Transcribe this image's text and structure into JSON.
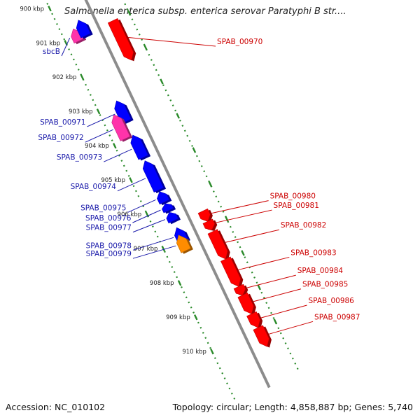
{
  "title": "Salmonella enterica subsp. enterica serovar Paratyphi B str....",
  "accession_label": "Accession: NC_010102",
  "summary_label": "Topology: circular; Length: 4,858,887 bp; Genes: 5,740",
  "colors": {
    "backbone": "#8c8c8c",
    "tick": "#2a8a2a",
    "forward_gene": "#ff0000",
    "reverse_gene": "#0000ff",
    "pseudo_gene": "#ff33aa",
    "rna_gene": "#ff8c00",
    "forward_label": "#cc0000",
    "reverse_label": "#1a1aaa"
  },
  "scale": {
    "unit": "kbp",
    "ticks": [
      {
        "kbp": 900,
        "label": "900 kbp"
      },
      {
        "kbp": 901,
        "label": "901 kbp"
      },
      {
        "kbp": 902,
        "label": "902 kbp"
      },
      {
        "kbp": 903,
        "label": "903 kbp"
      },
      {
        "kbp": 904,
        "label": "904 kbp"
      },
      {
        "kbp": 905,
        "label": "905 kbp"
      },
      {
        "kbp": 906,
        "label": "906 kbp"
      },
      {
        "kbp": 907,
        "label": "907 kbp"
      },
      {
        "kbp": 908,
        "label": "908 kbp"
      },
      {
        "kbp": 909,
        "label": "909 kbp"
      },
      {
        "kbp": 910,
        "label": "910 kbp"
      }
    ]
  },
  "genes": [
    {
      "label": "sbcB",
      "strand": "reverse",
      "type": "pseudo",
      "start": 900.75,
      "end": 901.1
    },
    {
      "label": "",
      "strand": "reverse",
      "type": "cds",
      "start": 900.6,
      "end": 901.05
    },
    {
      "label": "SPAB_00970",
      "strand": "forward",
      "type": "cds",
      "start": 901.0,
      "end": 902.15
    },
    {
      "label": "SPAB_00971",
      "strand": "reverse",
      "type": "cds",
      "start": 902.95,
      "end": 903.55
    },
    {
      "label": "SPAB_00972",
      "strand": "reverse",
      "type": "pseudo",
      "start": 903.25,
      "end": 903.95
    },
    {
      "label": "SPAB_00973",
      "strand": "reverse",
      "type": "cds",
      "start": 903.95,
      "end": 904.6
    },
    {
      "label": "SPAB_00974",
      "strand": "reverse",
      "type": "cds",
      "start": 904.7,
      "end": 905.55
    },
    {
      "label": "SPAB_00975",
      "strand": "reverse",
      "type": "cds",
      "start": 905.6,
      "end": 905.9
    },
    {
      "label": "SPAB_00976",
      "strand": "reverse",
      "type": "cds",
      "start": 905.95,
      "end": 906.15
    },
    {
      "label": "SPAB_00977",
      "strand": "reverse",
      "type": "cds",
      "start": 906.2,
      "end": 906.45
    },
    {
      "label": "SPAB_00978",
      "strand": "reverse",
      "type": "cds",
      "start": 906.65,
      "end": 907.05
    },
    {
      "label": "SPAB_00979",
      "strand": "reverse",
      "type": "rna",
      "start": 906.85,
      "end": 907.3
    },
    {
      "label": "SPAB_00980",
      "strand": "forward",
      "type": "cds",
      "start": 906.55,
      "end": 906.85
    },
    {
      "label": "SPAB_00981",
      "strand": "forward",
      "type": "cds",
      "start": 906.85,
      "end": 907.1
    },
    {
      "label": "SPAB_00982",
      "strand": "forward",
      "type": "cds",
      "start": 907.15,
      "end": 907.95
    },
    {
      "label": "SPAB_00983",
      "strand": "forward",
      "type": "cds",
      "start": 907.95,
      "end": 908.75
    },
    {
      "label": "SPAB_00984",
      "strand": "forward",
      "type": "cds",
      "start": 908.75,
      "end": 909.0
    },
    {
      "label": "SPAB_00985",
      "strand": "forward",
      "type": "cds",
      "start": 909.0,
      "end": 909.55
    },
    {
      "label": "SPAB_00986",
      "strand": "forward",
      "type": "cds",
      "start": 909.55,
      "end": 909.95
    },
    {
      "label": "SPAB_00987",
      "strand": "forward",
      "type": "cds",
      "start": 909.95,
      "end": 910.5
    }
  ]
}
